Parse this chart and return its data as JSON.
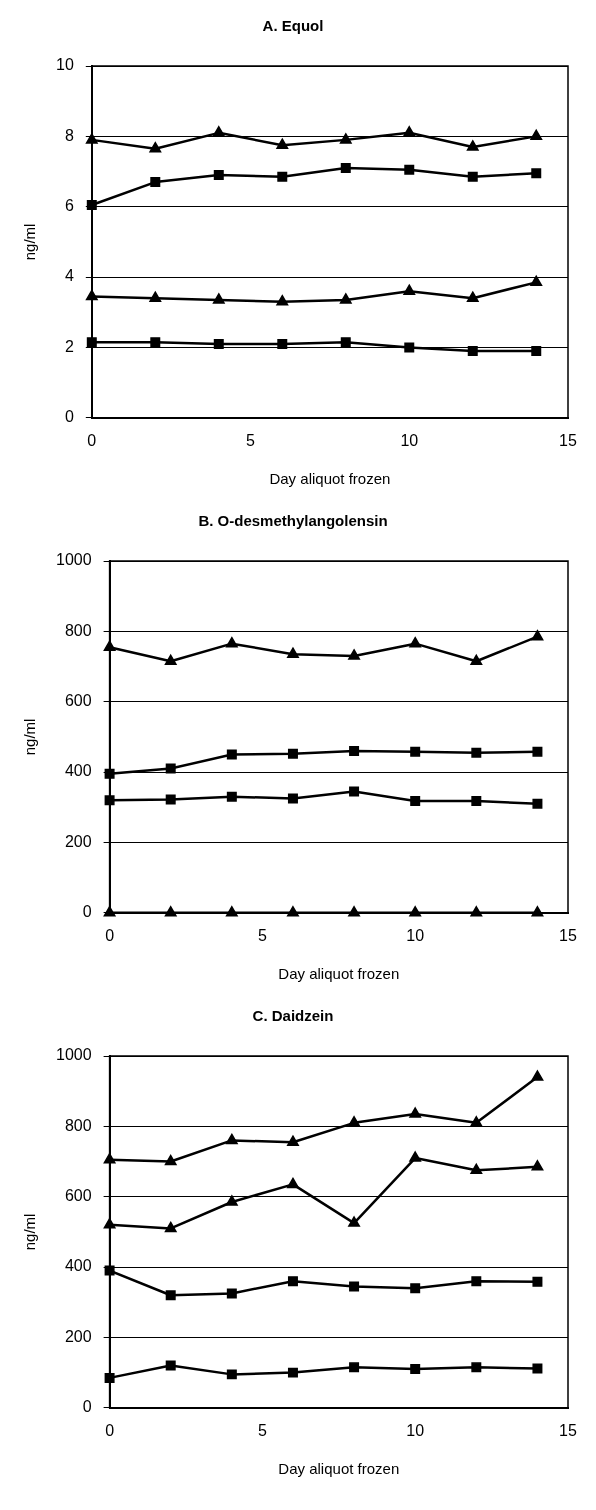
{
  "chart_data": [
    {
      "type": "line",
      "title": "A. Equol",
      "xlabel": "Day aliquot frozen",
      "ylabel": "ng/ml",
      "x": [
        0,
        2,
        4,
        6,
        8,
        10,
        12,
        14
      ],
      "xlim": [
        0,
        15
      ],
      "xticks": [
        0,
        5,
        10,
        15
      ],
      "ylim": [
        0,
        10
      ],
      "yticks": [
        0,
        2,
        4,
        6,
        8,
        10
      ],
      "grid": "y",
      "legend": false,
      "line_style": "solid",
      "series": [
        {
          "color": "#000000",
          "marker": "triangle",
          "values": [
            7.9,
            7.65,
            8.1,
            7.75,
            7.9,
            8.1,
            7.7,
            8.0
          ]
        },
        {
          "color": "#000000",
          "marker": "square",
          "values": [
            6.05,
            6.7,
            6.9,
            6.85,
            7.1,
            7.05,
            6.85,
            6.95
          ]
        },
        {
          "color": "#000000",
          "marker": "triangle",
          "values": [
            3.45,
            3.4,
            3.35,
            3.3,
            3.35,
            3.6,
            3.4,
            3.85
          ]
        },
        {
          "color": "#000000",
          "marker": "square",
          "values": [
            2.15,
            2.15,
            2.1,
            2.1,
            2.15,
            2.0,
            1.9,
            1.9
          ]
        }
      ]
    },
    {
      "type": "line",
      "title": "B. O-desmethylangolensin",
      "xlabel": "Day aliquot frozen",
      "ylabel": "ng/ml",
      "x": [
        0,
        2,
        4,
        6,
        8,
        10,
        12,
        14
      ],
      "xlim": [
        0,
        15
      ],
      "xticks": [
        0,
        5,
        10,
        15
      ],
      "ylim": [
        0,
        1000
      ],
      "yticks": [
        0,
        200,
        400,
        600,
        800,
        1000
      ],
      "grid": "y",
      "legend": false,
      "line_style": "solid",
      "series": [
        {
          "color": "#000000",
          "marker": "triangle",
          "values": [
            755,
            715,
            765,
            735,
            730,
            765,
            715,
            785
          ]
        },
        {
          "color": "#000000",
          "marker": "square",
          "values": [
            395,
            410,
            450,
            452,
            460,
            458,
            455,
            458
          ]
        },
        {
          "color": "#000000",
          "marker": "square",
          "values": [
            320,
            322,
            330,
            325,
            345,
            318,
            318,
            310
          ]
        },
        {
          "color": "#000000",
          "marker": "triangle",
          "values": [
            0,
            0,
            0,
            0,
            0,
            0,
            0,
            0
          ]
        }
      ]
    },
    {
      "type": "line",
      "title": "C. Daidzein",
      "xlabel": "Day aliquot frozen",
      "ylabel": "ng/ml",
      "x": [
        0,
        2,
        4,
        6,
        8,
        10,
        12,
        14
      ],
      "xlim": [
        0,
        15
      ],
      "xticks": [
        0,
        5,
        10,
        15
      ],
      "ylim": [
        0,
        1000
      ],
      "yticks": [
        0,
        200,
        400,
        600,
        800,
        1000
      ],
      "grid": "y",
      "legend": false,
      "line_style": "solid",
      "series": [
        {
          "color": "#000000",
          "marker": "triangle",
          "values": [
            705,
            700,
            760,
            755,
            810,
            835,
            810,
            940
          ]
        },
        {
          "color": "#000000",
          "marker": "triangle",
          "values": [
            520,
            510,
            585,
            635,
            525,
            710,
            675,
            685
          ]
        },
        {
          "color": "#000000",
          "marker": "square",
          "values": [
            390,
            320,
            325,
            360,
            345,
            340,
            360,
            358
          ]
        },
        {
          "color": "#000000",
          "marker": "square",
          "values": [
            85,
            120,
            95,
            100,
            115,
            110,
            115,
            112
          ]
        }
      ]
    }
  ]
}
